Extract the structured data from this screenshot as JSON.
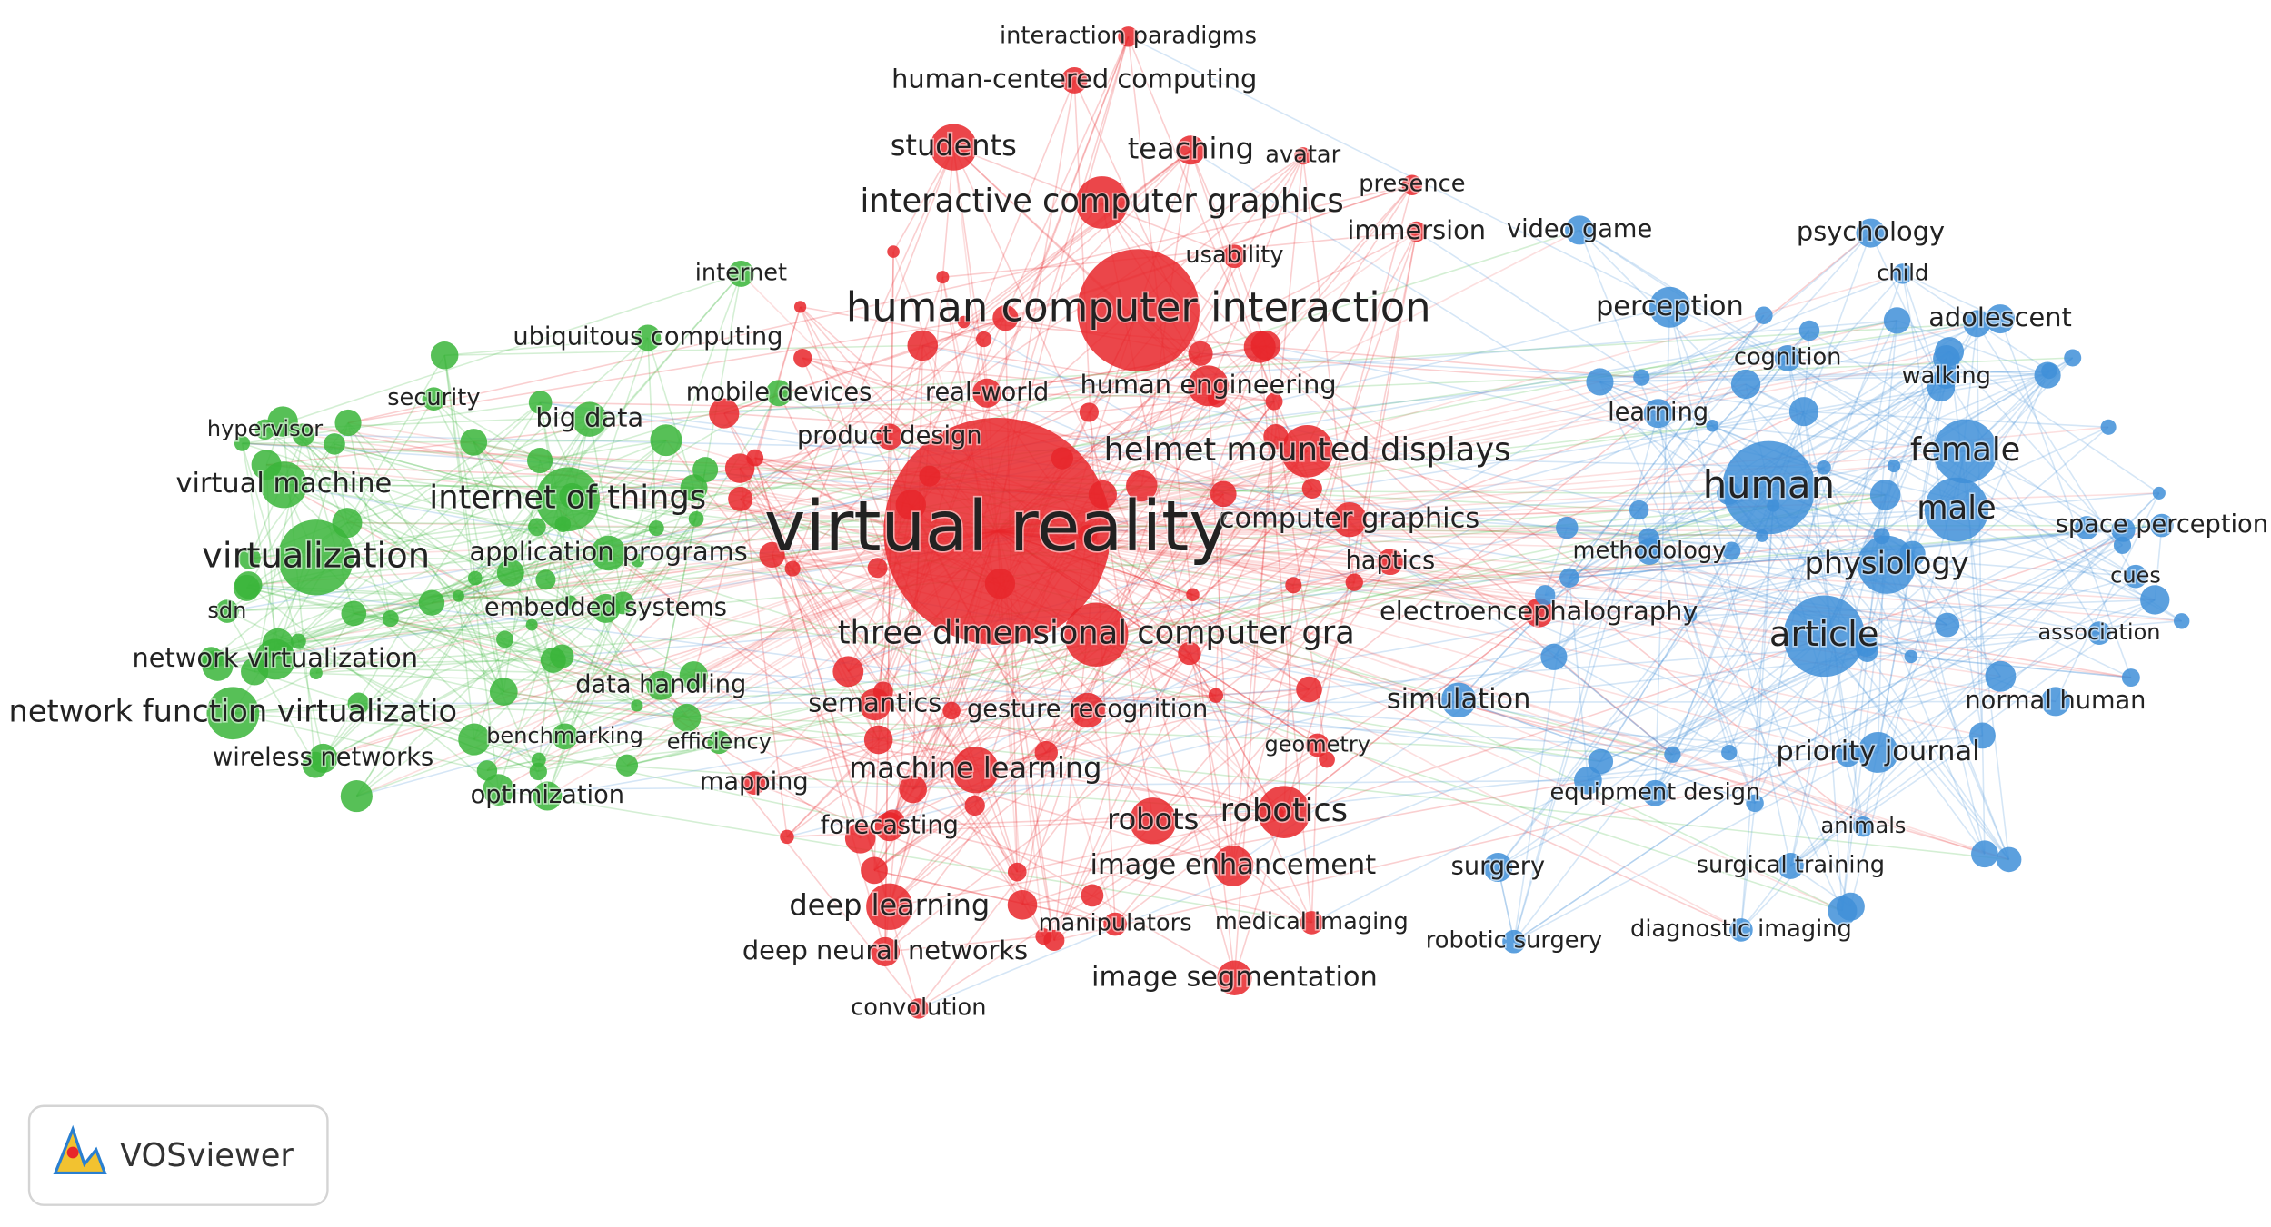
{
  "clusters": [
    {
      "color": "#e8262a",
      "nodes": [
        {
          "label": "interaction paradigms"
        },
        {
          "label": "human-centered computing"
        },
        {
          "label": "students"
        },
        {
          "label": "teaching"
        },
        {
          "label": "avatar"
        },
        {
          "label": "presence"
        },
        {
          "label": "interactive computer graphics"
        },
        {
          "label": "immersion"
        },
        {
          "label": "usability"
        },
        {
          "label": "human computer interaction"
        },
        {
          "label": "human engineering"
        },
        {
          "label": "real-world"
        },
        {
          "label": "product design"
        },
        {
          "label": "helmet mounted displays"
        },
        {
          "label": "virtual reality"
        },
        {
          "label": "computer graphics"
        },
        {
          "label": "haptics"
        },
        {
          "label": "three dimensional computer gra"
        },
        {
          "label": "electroencephalography"
        },
        {
          "label": "semantics"
        },
        {
          "label": "gesture recognition"
        },
        {
          "label": "geometry"
        },
        {
          "label": "machine learning"
        },
        {
          "label": "mapping"
        },
        {
          "label": "robotics"
        },
        {
          "label": "robots"
        },
        {
          "label": "forecasting"
        },
        {
          "label": "image enhancement"
        },
        {
          "label": "deep learning"
        },
        {
          "label": "manipulators"
        },
        {
          "label": "medical imaging"
        },
        {
          "label": "deep neural networks"
        },
        {
          "label": "image segmentation"
        },
        {
          "label": "convolution"
        }
      ]
    },
    {
      "color": "#3ab53a",
      "nodes": [
        {
          "label": "internet"
        },
        {
          "label": "ubiquitous computing"
        },
        {
          "label": "security"
        },
        {
          "label": "mobile devices"
        },
        {
          "label": "hypervisor"
        },
        {
          "label": "big data"
        },
        {
          "label": "virtual machine"
        },
        {
          "label": "internet of things"
        },
        {
          "label": "virtualization"
        },
        {
          "label": "application programs"
        },
        {
          "label": "embedded systems"
        },
        {
          "label": "sdn"
        },
        {
          "label": "network virtualization"
        },
        {
          "label": "data handling"
        },
        {
          "label": "network function virtualizatio"
        },
        {
          "label": "benchmarking"
        },
        {
          "label": "efficiency"
        },
        {
          "label": "wireless networks"
        },
        {
          "label": "optimization"
        }
      ]
    },
    {
      "color": "#3f8fd8",
      "nodes": [
        {
          "label": "video game"
        },
        {
          "label": "psychology"
        },
        {
          "label": "child"
        },
        {
          "label": "perception"
        },
        {
          "label": "cognition"
        },
        {
          "label": "adolescent"
        },
        {
          "label": "walking"
        },
        {
          "label": "learning"
        },
        {
          "label": "female"
        },
        {
          "label": "human"
        },
        {
          "label": "male"
        },
        {
          "label": "space perception"
        },
        {
          "label": "methodology"
        },
        {
          "label": "physiology"
        },
        {
          "label": "cues"
        },
        {
          "label": "association"
        },
        {
          "label": "article"
        },
        {
          "label": "simulation"
        },
        {
          "label": "normal human"
        },
        {
          "label": "priority journal"
        },
        {
          "label": "equipment design"
        },
        {
          "label": "animals"
        },
        {
          "label": "surgery"
        },
        {
          "label": "surgical training"
        },
        {
          "label": "diagnostic imaging"
        },
        {
          "label": "robotic surgery"
        }
      ]
    }
  ],
  "logo": {
    "text": "VOSviewer"
  }
}
